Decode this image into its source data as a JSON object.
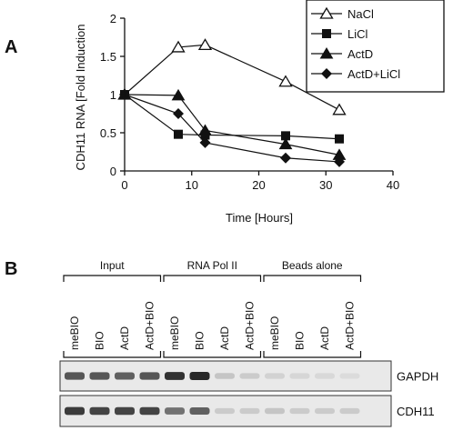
{
  "panels": {
    "a": {
      "letter": "A"
    },
    "b": {
      "letter": "B"
    }
  },
  "chart_data": {
    "type": "line",
    "title": "",
    "xlabel": "Time [Hours]",
    "ylabel": "CDH11 RNA [Fold Induction",
    "xlim": [
      0,
      40
    ],
    "ylim": [
      0,
      2
    ],
    "xticks": [
      0,
      10,
      20,
      30,
      40
    ],
    "yticks": [
      0,
      0.5,
      1,
      1.5,
      2
    ],
    "ytick_labels": [
      "0",
      "0.5",
      "1",
      "1.5",
      "2"
    ],
    "grid": false,
    "legend_position": "top-right",
    "series": [
      {
        "name": "NaCl",
        "marker": "open-triangle",
        "x": [
          0,
          8,
          12,
          24,
          32
        ],
        "y": [
          1.0,
          1.62,
          1.65,
          1.17,
          0.8
        ]
      },
      {
        "name": "LiCl",
        "marker": "filled-square",
        "x": [
          0,
          8,
          12,
          24,
          32
        ],
        "y": [
          1.0,
          0.48,
          0.47,
          0.46,
          0.42
        ]
      },
      {
        "name": "ActD",
        "marker": "filled-triangle",
        "x": [
          0,
          8,
          12,
          24,
          32
        ],
        "y": [
          1.0,
          0.99,
          0.53,
          0.35,
          0.21
        ]
      },
      {
        "name": "ActD+LiCl",
        "marker": "filled-diamond",
        "x": [
          0,
          8,
          12,
          24,
          32
        ],
        "y": [
          1.0,
          0.75,
          0.37,
          0.17,
          0.12
        ]
      }
    ]
  },
  "blot": {
    "groups": [
      {
        "label": "Input",
        "lanes": [
          "meBIO",
          "BIO",
          "ActD",
          "ActD+BIO"
        ]
      },
      {
        "label": "RNA Pol II",
        "lanes": [
          "meBIO",
          "BIO",
          "ActD",
          "ActD+BIO"
        ]
      },
      {
        "label": "Beads alone",
        "lanes": [
          "meBIO",
          "BIO",
          "ActD",
          "ActD+BIO"
        ]
      }
    ],
    "rows": [
      {
        "gene": "GAPDH",
        "intensities": [
          0.75,
          0.75,
          0.7,
          0.75,
          0.95,
          1.0,
          0.15,
          0.12,
          0.08,
          0.06,
          0.05,
          0.03
        ]
      },
      {
        "gene": "CDH11",
        "intensities": [
          0.9,
          0.85,
          0.85,
          0.85,
          0.6,
          0.7,
          0.12,
          0.12,
          0.15,
          0.12,
          0.12,
          0.12
        ]
      }
    ]
  }
}
